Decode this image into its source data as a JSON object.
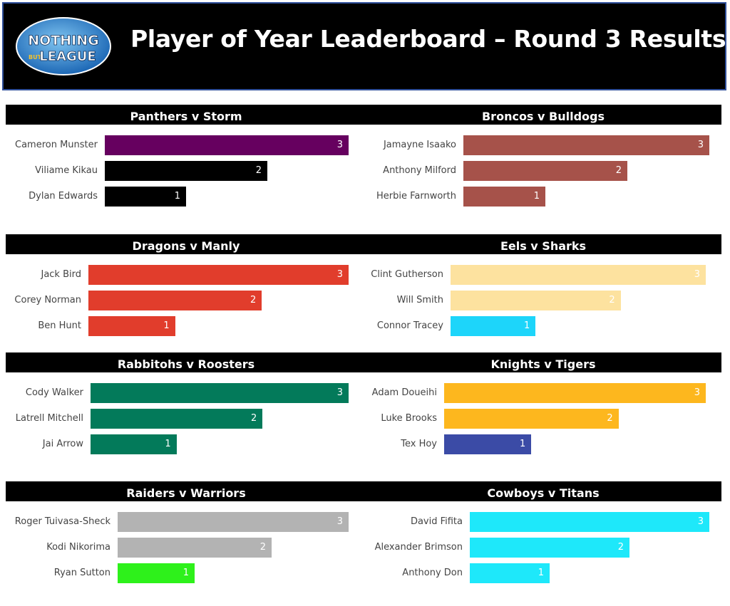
{
  "header": {
    "title": "Player of Year Leaderboard – Round 3 Results",
    "logo_text": [
      "NOTHING",
      "BUT",
      "LEAGUE"
    ]
  },
  "colors": {
    "header_bg": "#000000",
    "header_border": "#2f4f9a",
    "match_bar_bg": "#000000",
    "label_text": "#444444"
  },
  "chart_data": [
    {
      "type": "bar",
      "title": "Panthers v Storm",
      "categories": [
        "Cameron Munster",
        "Viliame Kikau",
        "Dylan Edwards"
      ],
      "values": [
        3,
        2,
        1
      ],
      "colors": [
        "#66005f",
        "#000000",
        "#000000"
      ],
      "xlim": [
        0,
        3
      ]
    },
    {
      "type": "bar",
      "title": "Broncos v Bulldogs",
      "categories": [
        "Jamayne Isaako",
        "Anthony Milford",
        "Herbie Farnworth"
      ],
      "values": [
        3,
        2,
        1
      ],
      "colors": [
        "#a6524a",
        "#a6524a",
        "#a6524a"
      ],
      "xlim": [
        0,
        3
      ]
    },
    {
      "type": "bar",
      "title": "Dragons v Manly",
      "categories": [
        "Jack Bird",
        "Corey Norman",
        "Ben Hunt"
      ],
      "values": [
        3,
        2,
        1
      ],
      "colors": [
        "#e13d2c",
        "#e13d2c",
        "#e13d2c"
      ],
      "xlim": [
        0,
        3
      ]
    },
    {
      "type": "bar",
      "title": "Eels v Sharks",
      "categories": [
        "Clint Gutherson",
        "Will Smith",
        "Connor Tracey"
      ],
      "values": [
        3,
        2,
        1
      ],
      "colors": [
        "#fde29f",
        "#fde29f",
        "#1dd5fa"
      ],
      "xlim": [
        0,
        3
      ]
    },
    {
      "type": "bar",
      "title": "Rabbitohs v Roosters",
      "categories": [
        "Cody Walker",
        "Latrell Mitchell",
        "Jai Arrow"
      ],
      "values": [
        3,
        2,
        1
      ],
      "colors": [
        "#037a5a",
        "#037a5a",
        "#037a5a"
      ],
      "xlim": [
        0,
        3
      ]
    },
    {
      "type": "bar",
      "title": "Knights v Tigers",
      "categories": [
        "Adam Doueihi",
        "Luke Brooks",
        "Tex Hoy"
      ],
      "values": [
        3,
        2,
        1
      ],
      "colors": [
        "#fdb71e",
        "#fdb71e",
        "#3b4ba6"
      ],
      "xlim": [
        0,
        3
      ]
    },
    {
      "type": "bar",
      "title": "Raiders v Warriors",
      "categories": [
        "Roger Tuivasa-Sheck",
        "Kodi Nikorima",
        "Ryan Sutton"
      ],
      "values": [
        3,
        2,
        1
      ],
      "colors": [
        "#b3b3b3",
        "#b3b3b3",
        "#2ef11b"
      ],
      "xlim": [
        0,
        3
      ]
    },
    {
      "type": "bar",
      "title": "Cowboys v Titans",
      "categories": [
        "David Fifita",
        "Alexander Brimson",
        "Anthony Don"
      ],
      "values": [
        3,
        2,
        1
      ],
      "colors": [
        "#1ee8fa",
        "#1ee8fa",
        "#1ee8fa"
      ],
      "xlim": [
        0,
        3
      ]
    }
  ]
}
